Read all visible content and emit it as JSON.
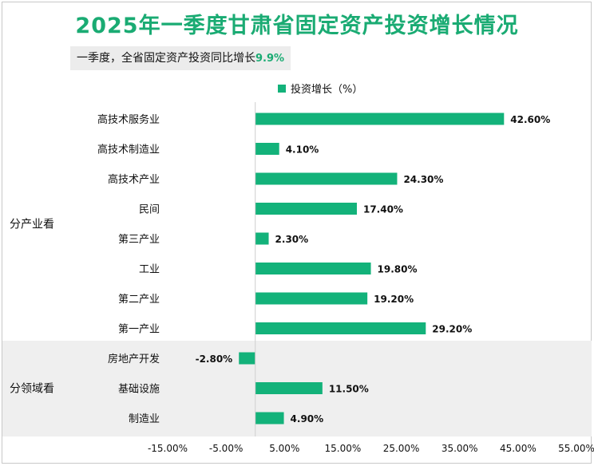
{
  "title": "2025年一季度甘肃省固定资产投资增长情况",
  "subtitle": {
    "text": "一季度，全省固定资产投资同比增长",
    "value": "9.9%"
  },
  "colors": {
    "bar": "#13b27a",
    "title": "#1aab73",
    "band": "#efefef"
  },
  "chart_data": {
    "type": "bar",
    "orientation": "horizontal",
    "legend": "投资增长（%）",
    "legend_position": "top",
    "xlim": [
      -15,
      55
    ],
    "xticks": [
      -15,
      -5,
      5,
      15,
      25,
      35,
      45,
      55
    ],
    "tick_labels": [
      "-15.00%",
      "-5.00%",
      "5.00%",
      "15.00%",
      "25.00%",
      "35.00%",
      "45.00%",
      "55.00%"
    ],
    "groups": [
      {
        "name": "分产业看",
        "categories": [
          "高技术服务业",
          "高技术制造业",
          "高技术产业",
          "民间",
          "第三产业",
          "工业",
          "第二产业",
          "第一产业"
        ],
        "values": [
          42.6,
          4.1,
          24.3,
          17.4,
          2.3,
          19.8,
          19.2,
          29.2
        ],
        "labels": [
          "42.60%",
          "4.10%",
          "24.30%",
          "17.40%",
          "2.30%",
          "19.80%",
          "19.20%",
          "29.20%"
        ]
      },
      {
        "name": "分领域看",
        "categories": [
          "房地产开发",
          "基础设施",
          "制造业"
        ],
        "values": [
          -2.8,
          11.5,
          4.9
        ],
        "labels": [
          "-2.80%",
          "11.50%",
          "4.90%"
        ]
      }
    ]
  }
}
